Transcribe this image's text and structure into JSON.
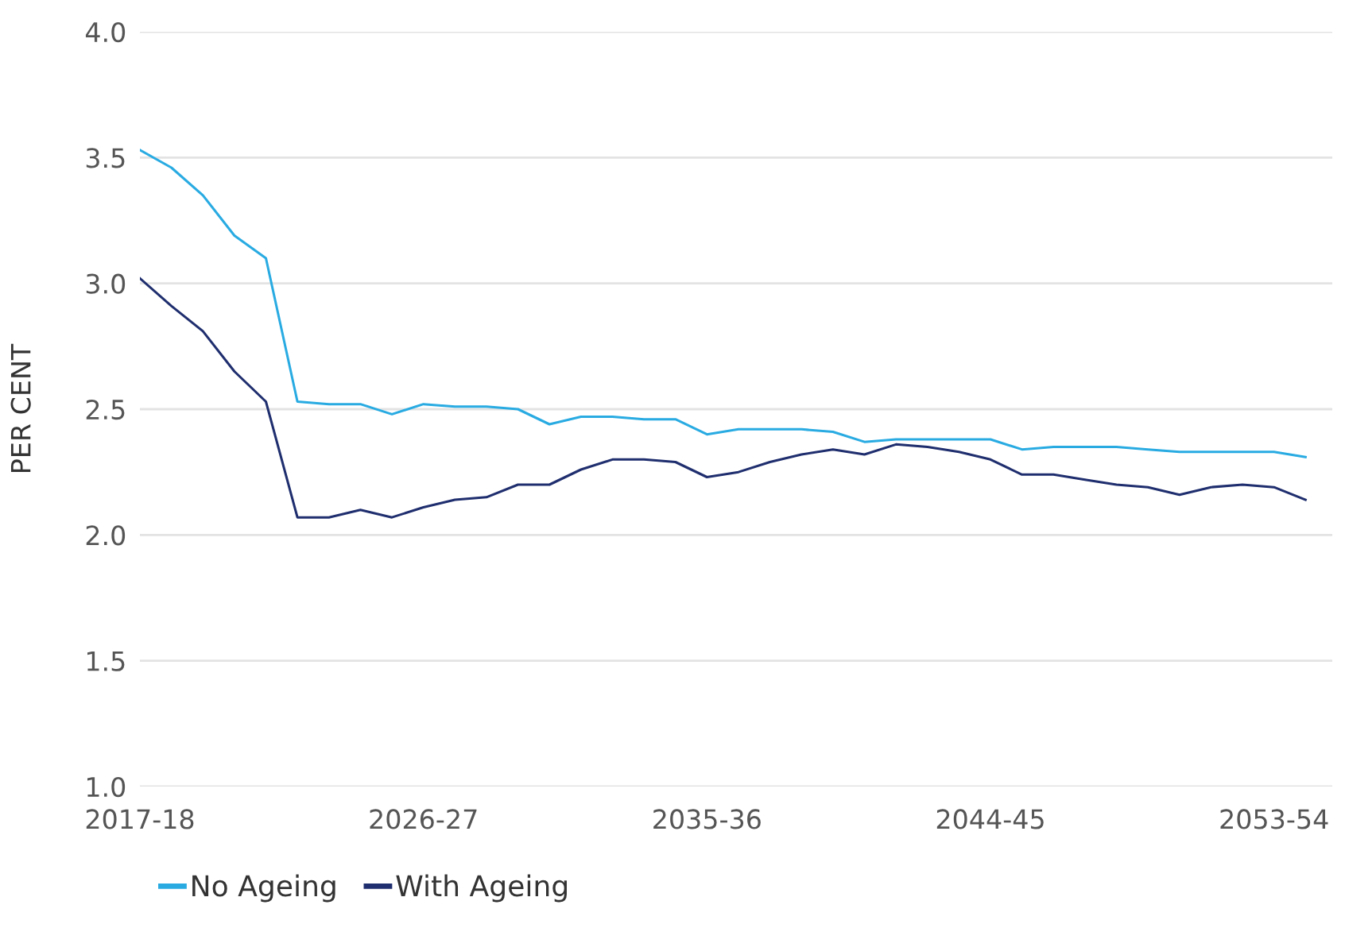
{
  "chart_data": {
    "type": "line",
    "ylabel": "PER CENT",
    "categories": [
      "2017-18",
      null,
      null,
      null,
      null,
      null,
      null,
      null,
      null,
      "2026-27",
      null,
      null,
      null,
      null,
      null,
      null,
      null,
      null,
      "2035-36",
      null,
      null,
      null,
      null,
      null,
      null,
      null,
      null,
      "2044-45",
      null,
      null,
      null,
      null,
      null,
      null,
      null,
      null,
      "2053-54",
      null
    ],
    "series": [
      {
        "name": "No Ageing",
        "color": "#29abe2",
        "values": [
          3.53,
          3.46,
          3.35,
          3.19,
          3.1,
          2.53,
          2.52,
          2.52,
          2.48,
          2.52,
          2.51,
          2.51,
          2.5,
          2.44,
          2.47,
          2.47,
          2.46,
          2.46,
          2.4,
          2.42,
          2.42,
          2.42,
          2.41,
          2.37,
          2.38,
          2.38,
          2.38,
          2.38,
          2.34,
          2.35,
          2.35,
          2.35,
          2.34,
          2.33,
          2.33,
          2.33,
          2.33,
          2.31
        ]
      },
      {
        "name": "With Ageing",
        "color": "#1f2e6e",
        "values": [
          3.02,
          2.91,
          2.81,
          2.65,
          2.53,
          2.07,
          2.07,
          2.1,
          2.07,
          2.11,
          2.14,
          2.15,
          2.2,
          2.2,
          2.26,
          2.3,
          2.3,
          2.29,
          2.23,
          2.25,
          2.29,
          2.32,
          2.34,
          2.32,
          2.36,
          2.35,
          2.33,
          2.3,
          2.24,
          2.24,
          2.22,
          2.2,
          2.19,
          2.16,
          2.19,
          2.2,
          2.19,
          2.14
        ]
      }
    ],
    "ylim": [
      1.0,
      4.0
    ],
    "yticks": [
      {
        "value": 1.0,
        "label": "1.0"
      },
      {
        "value": 1.5,
        "label": "1.5"
      },
      {
        "value": 2.0,
        "label": "2.0"
      },
      {
        "value": 2.5,
        "label": "2.5"
      },
      {
        "value": 3.0,
        "label": "3.0"
      },
      {
        "value": 3.5,
        "label": "3.5"
      },
      {
        "value": 4.0,
        "label": "4.0"
      }
    ],
    "grid": "y",
    "legend": "bottom left",
    "marker": "none",
    "line_style": "solid"
  }
}
